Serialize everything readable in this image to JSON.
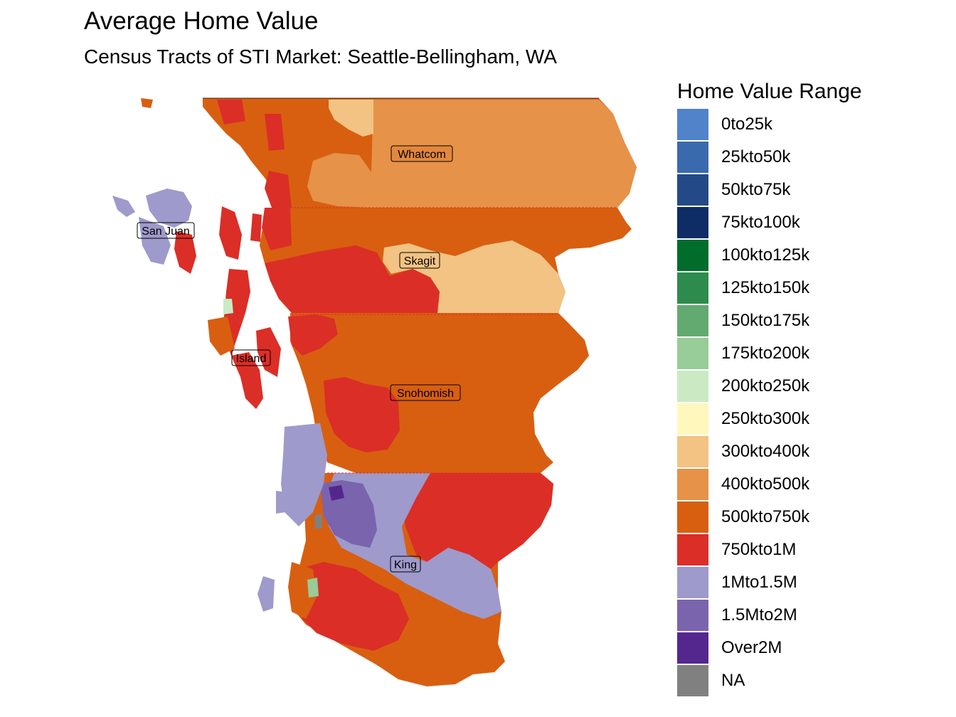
{
  "title": "Average Home Value",
  "subtitle": "Census Tracts of STI Market: Seattle-Bellingham, WA",
  "legend": {
    "title": "Home Value Range",
    "items": [
      {
        "label": "0to25k",
        "color": "#5183CB"
      },
      {
        "label": "25kto50k",
        "color": "#3A6AAE"
      },
      {
        "label": "50kto75k",
        "color": "#234A87"
      },
      {
        "label": "75kto100k",
        "color": "#0E2D66"
      },
      {
        "label": "100kto125k",
        "color": "#006D2C"
      },
      {
        "label": "125kto150k",
        "color": "#2E8B4E"
      },
      {
        "label": "150kto175k",
        "color": "#62AA6F"
      },
      {
        "label": "175kto200k",
        "color": "#98CC98"
      },
      {
        "label": "200kto250k",
        "color": "#CBEAC4"
      },
      {
        "label": "250kto300k",
        "color": "#FFF7BC"
      },
      {
        "label": "300kto400k",
        "color": "#F2C383"
      },
      {
        "label": "400kto500k",
        "color": "#E69249"
      },
      {
        "label": "500kto750k",
        "color": "#D85F10"
      },
      {
        "label": "750kto1M",
        "color": "#DB2E27"
      },
      {
        "label": "1Mto1.5M",
        "color": "#9E9ACB"
      },
      {
        "label": "1.5Mto2M",
        "color": "#7A64AE"
      },
      {
        "label": "Over2M",
        "color": "#54278F"
      },
      {
        "label": "NA",
        "color": "#808080"
      }
    ]
  },
  "counties": [
    {
      "name": "Whatcom"
    },
    {
      "name": "San Juan"
    },
    {
      "name": "Skagit"
    },
    {
      "name": "Island"
    },
    {
      "name": "Snohomish"
    },
    {
      "name": "King"
    }
  ]
}
